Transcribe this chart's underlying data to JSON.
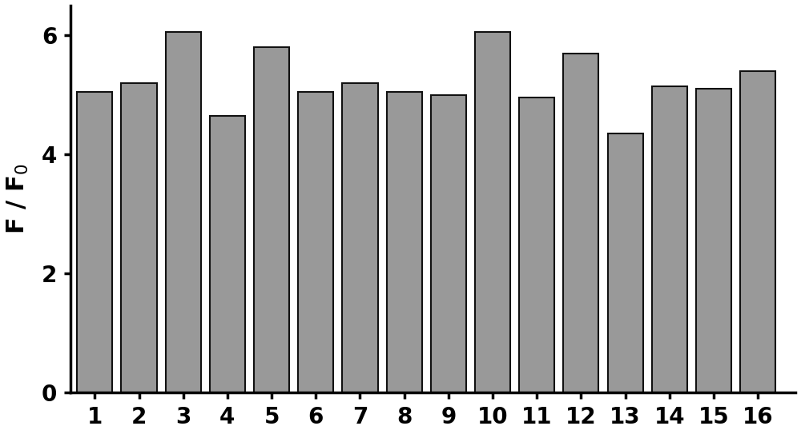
{
  "categories": [
    "1",
    "2",
    "3",
    "4",
    "5",
    "6",
    "7",
    "8",
    "9",
    "10",
    "11",
    "12",
    "13",
    "14",
    "15",
    "16"
  ],
  "values": [
    5.05,
    5.2,
    6.05,
    4.65,
    5.8,
    5.05,
    5.2,
    5.05,
    5.0,
    6.05,
    4.95,
    5.7,
    4.35,
    5.15,
    5.1,
    5.4
  ],
  "bar_color": "#999999",
  "bar_edgecolor": "#111111",
  "bar_linewidth": 1.5,
  "ylabel": "F / F$_0$",
  "ylim": [
    0,
    6.5
  ],
  "yticks": [
    0,
    2,
    4,
    6
  ],
  "background_color": "#ffffff",
  "ylabel_fontsize": 22,
  "tick_fontsize": 20,
  "bar_width": 0.8
}
